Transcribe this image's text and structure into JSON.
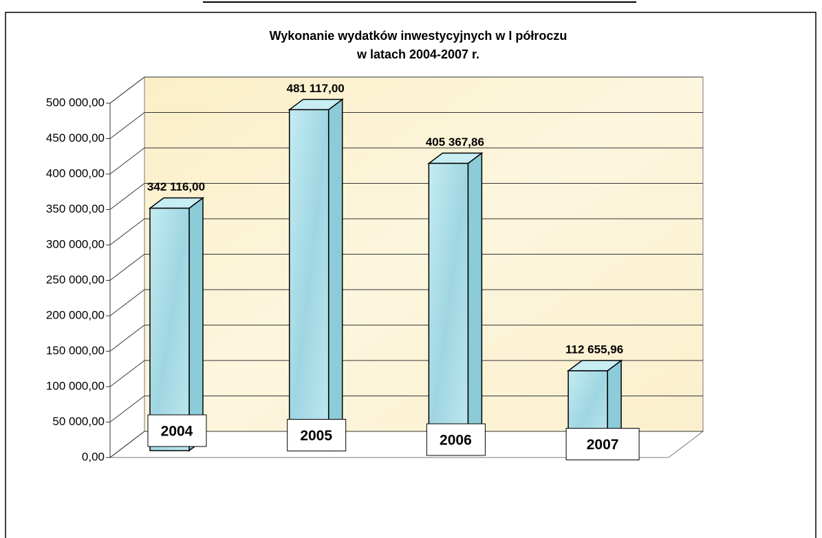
{
  "chart_data": {
    "type": "bar3d",
    "title": [
      "Wykonanie wydatków inwestycyjnych w I półroczu",
      "w latach 2004-2007 r."
    ],
    "categories": [
      "2004",
      "2005",
      "2006",
      "2007"
    ],
    "values": [
      342116,
      481117,
      405367.86,
      112655.96
    ],
    "value_labels": [
      "342 116,00",
      "481 117,00",
      "405 367,86",
      "112 655,96"
    ],
    "color": "#a8dde8",
    "ylim": [
      0,
      500000
    ],
    "yticks": [
      {
        "value": 0,
        "label": "0,00"
      },
      {
        "value": 50000,
        "label": "50 000,00"
      },
      {
        "value": 100000,
        "label": "100 000,00"
      },
      {
        "value": 150000,
        "label": "150 000,00"
      },
      {
        "value": 200000,
        "label": "200 000,00"
      },
      {
        "value": 250000,
        "label": "250 000,00"
      },
      {
        "value": 300000,
        "label": "300 000,00"
      },
      {
        "value": 350000,
        "label": "350 000,00"
      },
      {
        "value": 400000,
        "label": "400 000,00"
      },
      {
        "value": 450000,
        "label": "450 000,00"
      },
      {
        "value": 500000,
        "label": "500 000,00"
      }
    ],
    "grid": true
  }
}
